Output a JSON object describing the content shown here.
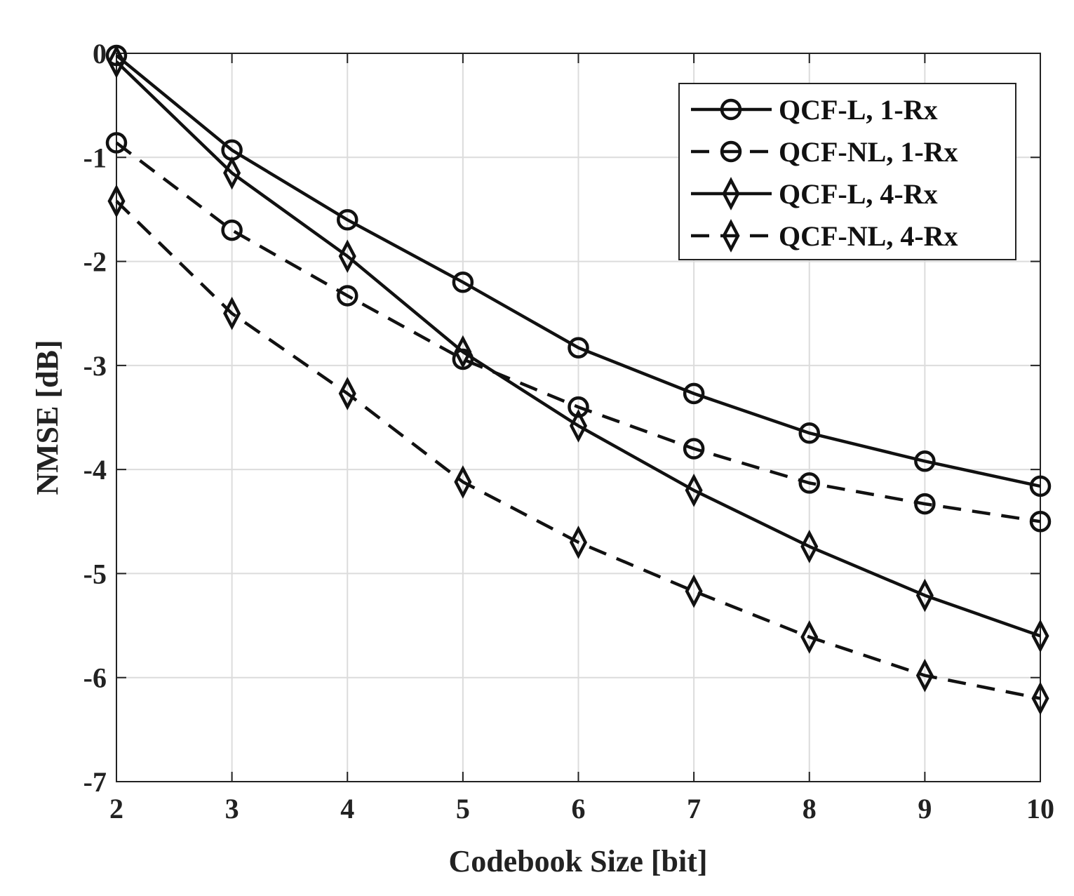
{
  "chart_data": {
    "type": "line",
    "title": "",
    "xlabel": "Codebook Size [bit]",
    "ylabel": "NMSE [dB]",
    "xlim": [
      2,
      10
    ],
    "ylim": [
      -7,
      0
    ],
    "grid": true,
    "legend_position": "top-right",
    "x": [
      2,
      3,
      4,
      5,
      6,
      7,
      8,
      9,
      10
    ],
    "x_tick_labels": [
      "2",
      "3",
      "4",
      "5",
      "6",
      "7",
      "8",
      "9",
      "10"
    ],
    "y_ticks": [
      0,
      -1,
      -2,
      -3,
      -4,
      -5,
      -6,
      -7
    ],
    "y_tick_labels": [
      "0",
      "-1",
      "-2",
      "-3",
      "-4",
      "-5",
      "-6",
      "-7"
    ],
    "series": [
      {
        "name": "QCF-L, 1-Rx",
        "line_style": "solid",
        "marker": "circle",
        "values": [
          -0.02,
          -0.93,
          -1.6,
          -2.2,
          -2.83,
          -3.27,
          -3.65,
          -3.92,
          -4.16
        ]
      },
      {
        "name": "QCF-NL, 1-Rx",
        "line_style": "dashed",
        "marker": "circle",
        "values": [
          -0.86,
          -1.7,
          -2.33,
          -2.94,
          -3.4,
          -3.8,
          -4.13,
          -4.33,
          -4.5
        ]
      },
      {
        "name": "QCF-L, 4-Rx",
        "line_style": "solid",
        "marker": "diamond",
        "values": [
          -0.08,
          -1.15,
          -1.95,
          -2.87,
          -3.58,
          -4.2,
          -4.74,
          -5.21,
          -5.6
        ]
      },
      {
        "name": "QCF-NL, 4-Rx",
        "line_style": "dashed",
        "marker": "diamond",
        "values": [
          -1.42,
          -2.5,
          -3.27,
          -4.12,
          -4.7,
          -5.17,
          -5.61,
          -5.98,
          -6.2
        ]
      }
    ],
    "colors": {
      "line": "#111111",
      "grid": "#dcdcdc",
      "axis": "#222222",
      "background": "#ffffff"
    }
  }
}
